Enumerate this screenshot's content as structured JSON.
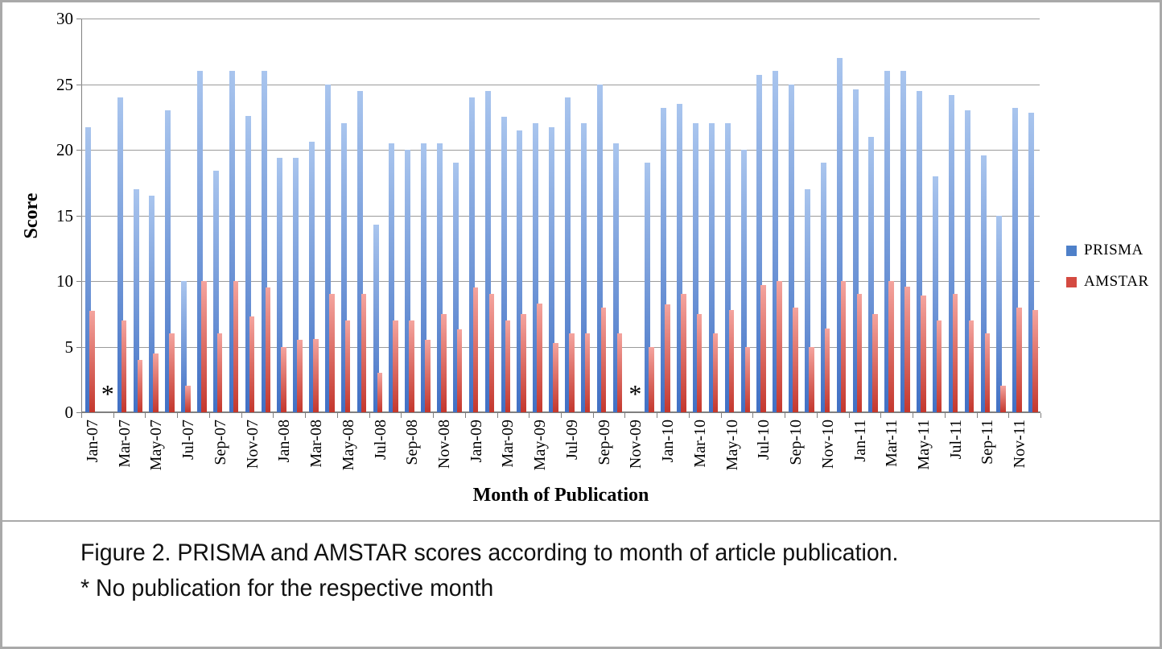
{
  "figure": {
    "caption_line1": "Figure 2. PRISMA and AMSTAR scores according to month of article publication.",
    "caption_line2": "* No publication for the respective month"
  },
  "legend": {
    "items": [
      {
        "label": "PRISMA",
        "color": "#4e80c9"
      },
      {
        "label": "AMSTAR",
        "color": "#d44a41"
      }
    ]
  },
  "colors": {
    "prisma_gradient_top": "#a9c5ee",
    "prisma_gradient_bottom": "#4170c4",
    "amstar_gradient_top": "#f4a49e",
    "amstar_gradient_bottom": "#c4372d",
    "gridline": "#9b9b9b",
    "axis": "#808080",
    "frame_border": "#a9a9a9"
  },
  "chart_data": {
    "type": "bar",
    "title": "",
    "xlabel": "Month of Publication",
    "ylabel": "Score",
    "ylim": [
      0,
      30
    ],
    "yticks": [
      0,
      5,
      10,
      15,
      20,
      25,
      30
    ],
    "grid": true,
    "legend_position": "right",
    "xtick_label_every": 2,
    "categories": [
      "Jan-07",
      "Feb-07",
      "Mar-07",
      "Apr-07",
      "May-07",
      "Jun-07",
      "Jul-07",
      "Aug-07",
      "Sep-07",
      "Oct-07",
      "Nov-07",
      "Dec-07",
      "Jan-08",
      "Feb-08",
      "Mar-08",
      "Apr-08",
      "May-08",
      "Jun-08",
      "Jul-08",
      "Aug-08",
      "Sep-08",
      "Oct-08",
      "Nov-08",
      "Dec-08",
      "Jan-09",
      "Feb-09",
      "Mar-09",
      "Apr-09",
      "May-09",
      "Jun-09",
      "Jul-09",
      "Aug-09",
      "Sep-09",
      "Oct-09",
      "Nov-09",
      "Dec-09",
      "Jan-10",
      "Feb-10",
      "Mar-10",
      "Apr-10",
      "May-10",
      "Jun-10",
      "Jul-10",
      "Aug-10",
      "Sep-10",
      "Oct-10",
      "Nov-10",
      "Dec-10",
      "Jan-11",
      "Feb-11",
      "Mar-11",
      "Apr-11",
      "May-11",
      "Jun-11",
      "Jul-11",
      "Aug-11",
      "Sep-11",
      "Oct-11",
      "Nov-11",
      "Dec-11"
    ],
    "series": [
      {
        "name": "PRISMA",
        "values": [
          21.7,
          null,
          24,
          17,
          16.5,
          23,
          10,
          26,
          18.4,
          26,
          22.6,
          26,
          19.4,
          19.4,
          20.6,
          25,
          22,
          24.5,
          14.3,
          20.5,
          20,
          20.5,
          20.5,
          19,
          24,
          24.5,
          22.5,
          21.5,
          22,
          21.7,
          24,
          22,
          25,
          20.5,
          null,
          19,
          23.2,
          23.5,
          22,
          22,
          22,
          20,
          25.7,
          26,
          25,
          17,
          19,
          27,
          24.6,
          21,
          26,
          26,
          24.5,
          18,
          24.2,
          23,
          19.6,
          15,
          23.2,
          22.8
        ]
      },
      {
        "name": "AMSTAR",
        "values": [
          7.7,
          null,
          7,
          4,
          4.5,
          6,
          2,
          10,
          6,
          10,
          7.3,
          9.5,
          5,
          5.5,
          5.6,
          9,
          7,
          9,
          3,
          7,
          7,
          5.5,
          7.5,
          6.3,
          9.5,
          9,
          7,
          7.5,
          8.3,
          5.3,
          6,
          6,
          8,
          6,
          null,
          5,
          8.2,
          9,
          7.5,
          6,
          7.8,
          5,
          9.7,
          10,
          8,
          5,
          6.4,
          10,
          9,
          7.5,
          10,
          9.6,
          8.9,
          7,
          9,
          7,
          6,
          2,
          8,
          7.8
        ]
      }
    ],
    "annotations": [
      {
        "category": "Feb-07",
        "text": "*"
      },
      {
        "category": "Nov-09",
        "text": "*"
      }
    ]
  }
}
